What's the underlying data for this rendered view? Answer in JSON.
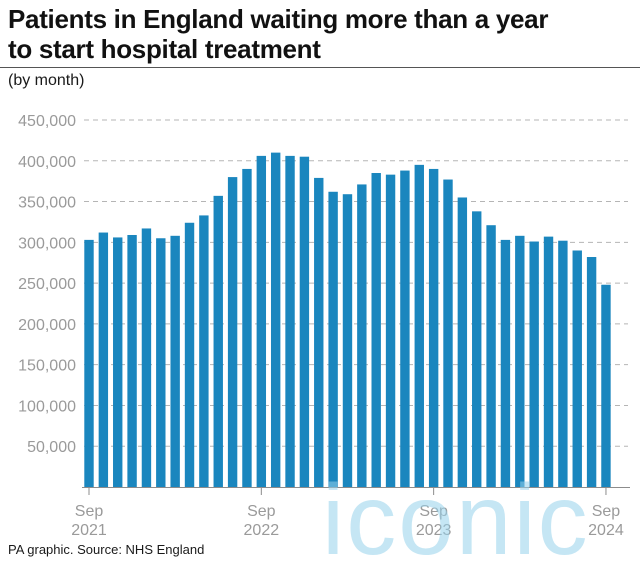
{
  "header": {
    "title_line1": "Patients in England waiting more than a year",
    "title_line2": "to start hospital treatment",
    "subtitle": "(by month)"
  },
  "footer": {
    "source": "PA graphic. Source: NHS England"
  },
  "watermark": {
    "text": "iconic"
  },
  "colors": {
    "bar": "#1a86be",
    "grid": "#b5b5b5",
    "axis": "#8c8c8c",
    "text": "#1a1a1a"
  },
  "chart_data": {
    "type": "bar",
    "title": "Patients in England waiting more than a year to start hospital treatment",
    "subtitle": "(by month)",
    "xlabel": "",
    "ylabel": "",
    "ylim": [
      0,
      450000
    ],
    "yticks": [
      50000,
      100000,
      150000,
      200000,
      250000,
      300000,
      350000,
      400000,
      450000
    ],
    "ytick_labels": [
      "50,000",
      "100,000",
      "150,000",
      "200,000",
      "250,000",
      "300,000",
      "350,000",
      "400,000",
      "450,000"
    ],
    "grid": true,
    "legend": "none",
    "categories": [
      "Sep 2021",
      "Oct 2021",
      "Nov 2021",
      "Dec 2021",
      "Jan 2022",
      "Feb 2022",
      "Mar 2022",
      "Apr 2022",
      "May 2022",
      "Jun 2022",
      "Jul 2022",
      "Aug 2022",
      "Sep 2022",
      "Oct 2022",
      "Nov 2022",
      "Dec 2022",
      "Jan 2023",
      "Feb 2023",
      "Mar 2023",
      "Apr 2023",
      "May 2023",
      "Jun 2023",
      "Jul 2023",
      "Aug 2023",
      "Sep 2023",
      "Oct 2023",
      "Nov 2023",
      "Dec 2023",
      "Jan 2024",
      "Feb 2024",
      "Mar 2024",
      "Apr 2024",
      "May 2024",
      "Jun 2024",
      "Jul 2024",
      "Aug 2024",
      "Sep 2024"
    ],
    "x_tick_labels": [
      {
        "index": 0,
        "line1": "Sep",
        "line2": "2021"
      },
      {
        "index": 12,
        "line1": "Sep",
        "line2": "2022"
      },
      {
        "index": 24,
        "line1": "Sep",
        "line2": "2023"
      },
      {
        "index": 36,
        "line1": "Sep",
        "line2": "2024"
      }
    ],
    "values": [
      303000,
      312000,
      306000,
      309000,
      317000,
      305000,
      308000,
      324000,
      333000,
      357000,
      380000,
      390000,
      406000,
      410000,
      406000,
      405000,
      379000,
      362000,
      359000,
      371000,
      385000,
      383000,
      388000,
      395000,
      390000,
      377000,
      355000,
      338000,
      321000,
      303000,
      308000,
      301000,
      307000,
      302000,
      290000,
      282000,
      248000
    ]
  }
}
